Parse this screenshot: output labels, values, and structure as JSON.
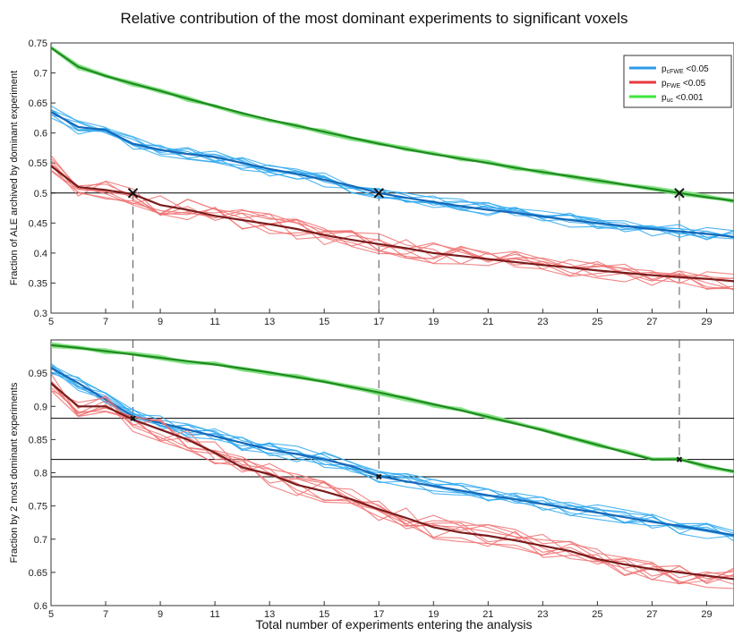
{
  "title": "Relative contribution of the most dominant experiments to significant voxels",
  "xlabel": "Total number of experiments entering the analysis",
  "legend": {
    "placement": "top-right",
    "entries": [
      {
        "label_main": "p",
        "label_sub": "cFWE",
        "label_tail": " <0.05",
        "color": "#2b9bea"
      },
      {
        "label_main": "p",
        "label_sub": "FWE",
        "label_tail": " <0.05",
        "color": "#e8383d"
      },
      {
        "label_main": "p",
        "label_sub": "uc",
        "label_tail": " <0.001",
        "color": "#3ee63e"
      }
    ]
  },
  "colors": {
    "green": "#1f8a1f",
    "green_band": "#7fe07f",
    "blue": "#1769b8",
    "blue_light": "#2ea8f0",
    "red_dark": "#7a1c1c",
    "red_light": "#f07070",
    "reference": "#000000"
  },
  "chart_data": [
    {
      "type": "line",
      "ylabel": "Fraction of ALE archived by dominant experiment",
      "xlim": [
        5,
        30
      ],
      "ylim": [
        0.3,
        0.75
      ],
      "xticks": [
        5,
        7,
        9,
        11,
        13,
        15,
        17,
        19,
        21,
        23,
        25,
        27,
        29
      ],
      "yticks": [
        0.3,
        0.35,
        0.4,
        0.45,
        0.5,
        0.55,
        0.6,
        0.65,
        0.7,
        0.75
      ],
      "x": [
        5,
        6,
        7,
        8,
        9,
        10,
        11,
        12,
        13,
        14,
        15,
        16,
        17,
        18,
        19,
        20,
        21,
        22,
        23,
        24,
        25,
        26,
        27,
        28,
        29,
        30
      ],
      "series": [
        {
          "name": "pcFWE <0.05",
          "color": "blue",
          "values": [
            0.635,
            0.61,
            0.605,
            0.582,
            0.572,
            0.565,
            0.56,
            0.55,
            0.54,
            0.532,
            0.522,
            0.512,
            0.5,
            0.492,
            0.485,
            0.478,
            0.472,
            0.467,
            0.461,
            0.455,
            0.45,
            0.445,
            0.44,
            0.436,
            0.432,
            0.427
          ]
        },
        {
          "name": "pFWE <0.05",
          "color": "red",
          "values": [
            0.545,
            0.51,
            0.505,
            0.498,
            0.48,
            0.472,
            0.462,
            0.455,
            0.448,
            0.44,
            0.43,
            0.422,
            0.415,
            0.408,
            0.4,
            0.395,
            0.39,
            0.385,
            0.38,
            0.376,
            0.371,
            0.367,
            0.363,
            0.36,
            0.357,
            0.353
          ]
        },
        {
          "name": "puc <0.001",
          "color": "green",
          "values": [
            0.742,
            0.71,
            0.695,
            0.682,
            0.67,
            0.657,
            0.645,
            0.633,
            0.622,
            0.612,
            0.602,
            0.592,
            0.582,
            0.573,
            0.565,
            0.557,
            0.55,
            0.542,
            0.535,
            0.528,
            0.521,
            0.514,
            0.507,
            0.5,
            0.493,
            0.487
          ]
        }
      ],
      "reference_lines": [
        {
          "y": 0.5
        }
      ],
      "markers": [
        {
          "x": 8,
          "y": 0.5
        },
        {
          "x": 17,
          "y": 0.5
        },
        {
          "x": 28,
          "y": 0.5
        }
      ]
    },
    {
      "type": "line",
      "ylabel": "Fraction by 2 most dominant experiments",
      "xlim": [
        5,
        30
      ],
      "ylim": [
        0.6,
        1.0
      ],
      "xticks": [
        5,
        7,
        9,
        11,
        13,
        15,
        17,
        19,
        21,
        23,
        25,
        27,
        29
      ],
      "yticks": [
        0.6,
        0.65,
        0.7,
        0.75,
        0.8,
        0.85,
        0.9,
        0.95
      ],
      "x": [
        5,
        6,
        7,
        8,
        9,
        10,
        11,
        12,
        13,
        14,
        15,
        16,
        17,
        18,
        19,
        20,
        21,
        22,
        23,
        24,
        25,
        26,
        27,
        28,
        29,
        30
      ],
      "series": [
        {
          "name": "pcFWE <0.05",
          "color": "blue",
          "values": [
            0.958,
            0.935,
            0.91,
            0.885,
            0.875,
            0.865,
            0.855,
            0.845,
            0.835,
            0.828,
            0.82,
            0.81,
            0.795,
            0.787,
            0.78,
            0.773,
            0.766,
            0.76,
            0.753,
            0.746,
            0.74,
            0.733,
            0.726,
            0.72,
            0.713,
            0.706
          ]
        },
        {
          "name": "pFWE <0.05",
          "color": "red",
          "values": [
            0.935,
            0.9,
            0.9,
            0.88,
            0.865,
            0.85,
            0.83,
            0.808,
            0.798,
            0.782,
            0.772,
            0.76,
            0.745,
            0.732,
            0.718,
            0.71,
            0.705,
            0.698,
            0.69,
            0.682,
            0.67,
            0.662,
            0.655,
            0.65,
            0.645,
            0.64
          ]
        },
        {
          "name": "puc <0.001",
          "color": "green",
          "values": [
            0.992,
            0.988,
            0.983,
            0.978,
            0.973,
            0.968,
            0.963,
            0.957,
            0.951,
            0.944,
            0.937,
            0.929,
            0.921,
            0.912,
            0.903,
            0.894,
            0.884,
            0.874,
            0.864,
            0.853,
            0.842,
            0.831,
            0.82,
            0.82,
            0.81,
            0.802
          ]
        }
      ],
      "reference_lines": [
        {
          "y": 0.882
        },
        {
          "y": 0.82
        },
        {
          "y": 0.794
        }
      ],
      "markers": [
        {
          "x": 8,
          "y": 0.882
        },
        {
          "x": 17,
          "y": 0.794
        },
        {
          "x": 28,
          "y": 0.82
        }
      ]
    }
  ]
}
